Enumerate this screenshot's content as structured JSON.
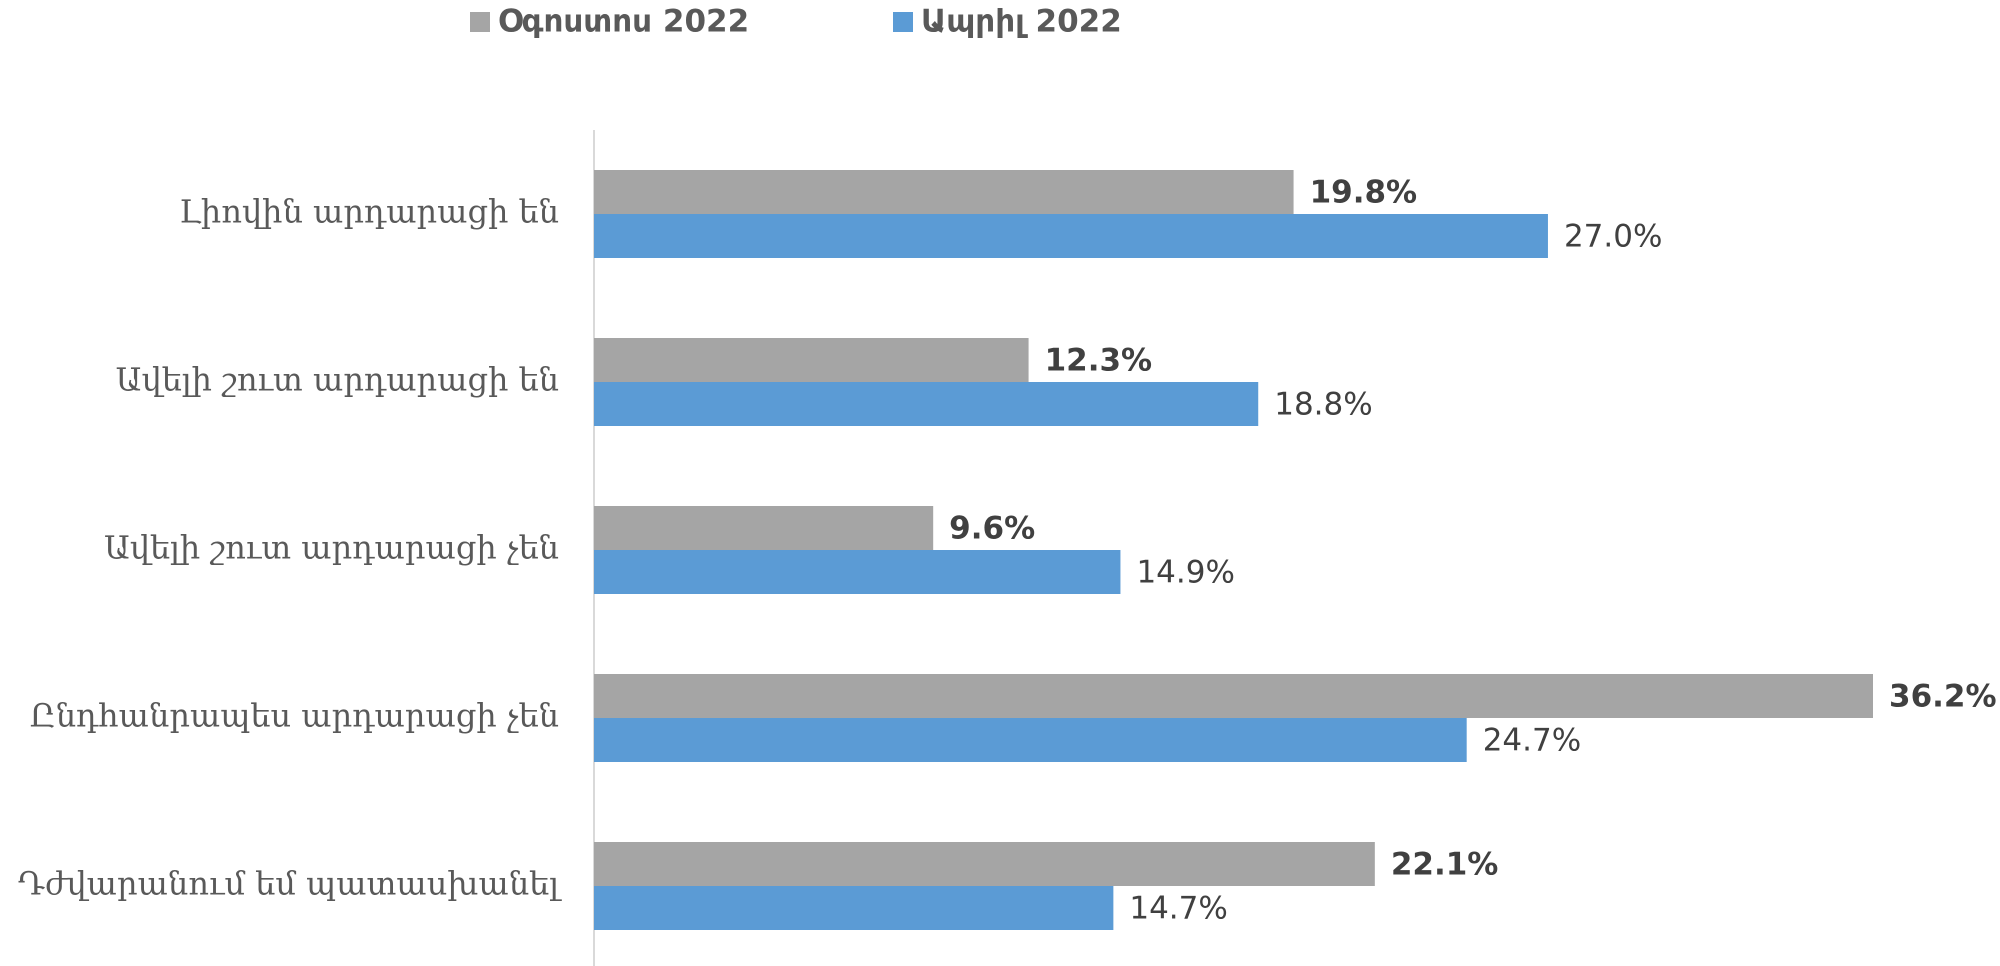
{
  "chart_data": {
    "type": "bar",
    "orientation": "horizontal",
    "categories": [
      "Լիովին արդարացի են",
      "Ավելի շուտ արդարացի են",
      "Ավելի շուտ արդարացի չեն",
      "Ընդհանրապես արդարացի չեն",
      "Դժվարանում եմ պատասխանել"
    ],
    "series": [
      {
        "name": "Օգոստոս 2022",
        "color": "#a5a5a5",
        "values": [
          19.8,
          12.3,
          9.6,
          36.2,
          22.1
        ],
        "value_labels": [
          "19.8%",
          "12.3%",
          "9.6%",
          "36.2%",
          "22.1%"
        ]
      },
      {
        "name": "Ապրիլ 2022",
        "color": "#5b9bd5",
        "values": [
          27.0,
          18.8,
          14.9,
          24.7,
          14.7
        ],
        "value_labels": [
          "27.0%",
          "18.8%",
          "14.9%",
          "24.7%",
          "14.7%"
        ]
      }
    ],
    "legend": "top"
  }
}
